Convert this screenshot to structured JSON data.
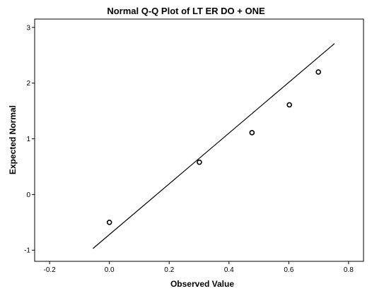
{
  "chart_data": {
    "type": "scatter",
    "title": "Normal Q-Q Plot of LT ER DO + ONE",
    "xlabel": "Observed Value",
    "ylabel": "Expected Normal",
    "xlim": [
      -0.25,
      0.85
    ],
    "ylim": [
      -1.2,
      3.15
    ],
    "x_ticks": [
      -0.2,
      0.0,
      0.2,
      0.4,
      0.6,
      0.8
    ],
    "x_tick_labels": [
      "-0.2",
      "0.0",
      "0.2",
      "0.4",
      "0.6",
      "0.8"
    ],
    "y_ticks": [
      -1,
      0,
      1,
      2,
      3
    ],
    "y_tick_labels": [
      "-1",
      "0",
      "1",
      "2",
      "3"
    ],
    "grid": false,
    "series": [
      {
        "x": [
          0.0,
          0.301,
          0.477,
          0.602,
          0.699
        ],
        "y": [
          -0.5,
          0.58,
          1.11,
          1.61,
          2.2
        ]
      }
    ],
    "reference_line": {
      "x": [
        -0.055,
        0.753
      ],
      "y": [
        -0.97,
        2.71
      ]
    },
    "colors": {
      "plot_background": "#ffffff",
      "frame": "#000000",
      "line": "#000000",
      "marker_stroke": "#000000"
    }
  }
}
